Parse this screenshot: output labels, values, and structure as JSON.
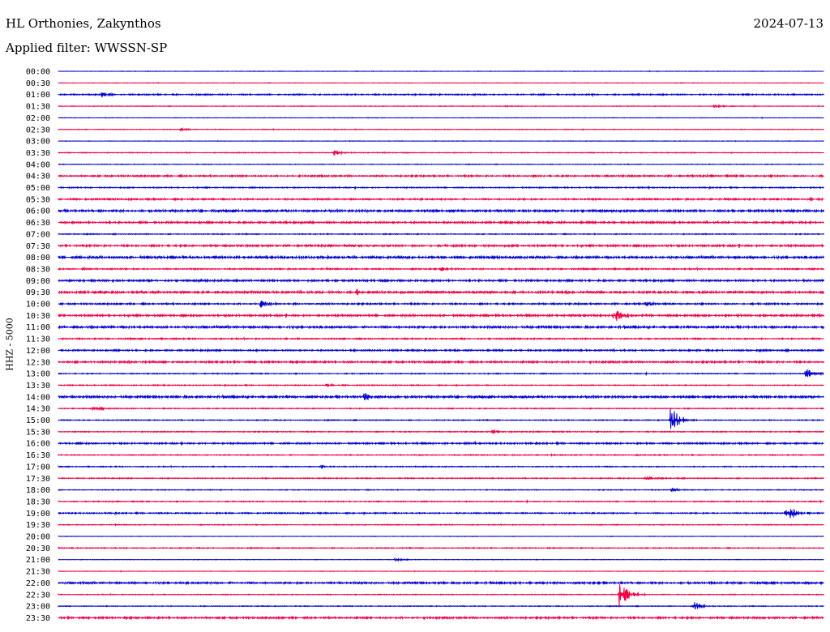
{
  "header": {
    "station": "HL Orthonies, Zakynthos",
    "date": "2024-07-13",
    "filter": "Applied filter: WWSSN-SP"
  },
  "axis": {
    "ylabel": "HHZ  -  5000"
  },
  "colors": {
    "even_rows": "#0000cc",
    "odd_rows": "#ee0044",
    "background": "#ffffff"
  },
  "chart_data": {
    "type": "line",
    "title": "HL Orthonies, Zakynthos",
    "subtitle": "Applied filter: WWSSN-SP",
    "ylabel": "HHZ  -  5000",
    "xlabel": "",
    "rows": [
      "00:00",
      "00:30",
      "01:00",
      "01:30",
      "02:00",
      "02:30",
      "03:00",
      "03:30",
      "04:00",
      "04:30",
      "05:00",
      "05:30",
      "06:00",
      "06:30",
      "07:00",
      "07:30",
      "08:00",
      "08:30",
      "09:00",
      "09:30",
      "10:00",
      "10:30",
      "11:00",
      "11:30",
      "12:00",
      "12:30",
      "13:00",
      "13:30",
      "14:00",
      "14:30",
      "15:00",
      "15:30",
      "16:00",
      "16:30",
      "17:00",
      "17:30",
      "18:00",
      "18:30",
      "19:00",
      "19:30",
      "20:00",
      "20:30",
      "21:00",
      "21:30",
      "22:00",
      "22:30",
      "23:00",
      "23:30"
    ],
    "x_range_minutes": [
      0,
      30
    ],
    "row_noise_level": [
      0.3,
      0.3,
      0.8,
      0.4,
      0.3,
      0.4,
      0.3,
      0.5,
      0.4,
      1.0,
      0.7,
      1.0,
      1.4,
      1.2,
      0.6,
      1.2,
      1.4,
      0.8,
      1.2,
      1.4,
      1.0,
      1.2,
      1.4,
      0.8,
      1.0,
      1.2,
      0.6,
      0.6,
      1.4,
      0.6,
      0.6,
      0.6,
      1.0,
      0.6,
      0.6,
      0.6,
      0.5,
      0.6,
      0.8,
      0.5,
      0.3,
      0.6,
      0.3,
      0.3,
      1.2,
      0.5,
      0.5,
      1.2
    ],
    "events": [
      {
        "row": "01:00",
        "minute": 1.7,
        "amplitude": 3
      },
      {
        "row": "01:30",
        "minute": 25.7,
        "amplitude": 3
      },
      {
        "row": "01:30",
        "minute": 17.5,
        "amplitude": 1.5
      },
      {
        "row": "02:30",
        "minute": 4.8,
        "amplitude": 2
      },
      {
        "row": "03:30",
        "minute": 10.8,
        "amplitude": 4
      },
      {
        "row": "05:30",
        "minute": 29.5,
        "amplitude": 3
      },
      {
        "row": "08:30",
        "minute": 0.9,
        "amplitude": 3
      },
      {
        "row": "08:30",
        "minute": 15.0,
        "amplitude": 3
      },
      {
        "row": "09:30",
        "minute": 11.7,
        "amplitude": 3
      },
      {
        "row": "10:00",
        "minute": 7.9,
        "amplitude": 5
      },
      {
        "row": "10:00",
        "minute": 23.0,
        "amplitude": 3
      },
      {
        "row": "10:30",
        "minute": 21.8,
        "amplitude": 9
      },
      {
        "row": "10:30",
        "minute": 26.5,
        "amplitude": 2
      },
      {
        "row": "13:00",
        "minute": 29.3,
        "amplitude": 7
      },
      {
        "row": "13:30",
        "minute": 10.5,
        "amplitude": 2
      },
      {
        "row": "14:00",
        "minute": 12.0,
        "amplitude": 5
      },
      {
        "row": "14:30",
        "minute": 1.3,
        "amplitude": 3
      },
      {
        "row": "15:00",
        "minute": 24.0,
        "amplitude": 18
      },
      {
        "row": "15:30",
        "minute": 17.0,
        "amplitude": 3
      },
      {
        "row": "17:00",
        "minute": 10.3,
        "amplitude": 2
      },
      {
        "row": "17:30",
        "minute": 23.0,
        "amplitude": 3
      },
      {
        "row": "18:00",
        "minute": 24.0,
        "amplitude": 2
      },
      {
        "row": "19:00",
        "minute": 28.5,
        "amplitude": 14
      },
      {
        "row": "21:00",
        "minute": 13.2,
        "amplitude": 2
      },
      {
        "row": "22:30",
        "minute": 22.0,
        "amplitude": 20
      },
      {
        "row": "23:00",
        "minute": 24.9,
        "amplitude": 7
      }
    ]
  }
}
